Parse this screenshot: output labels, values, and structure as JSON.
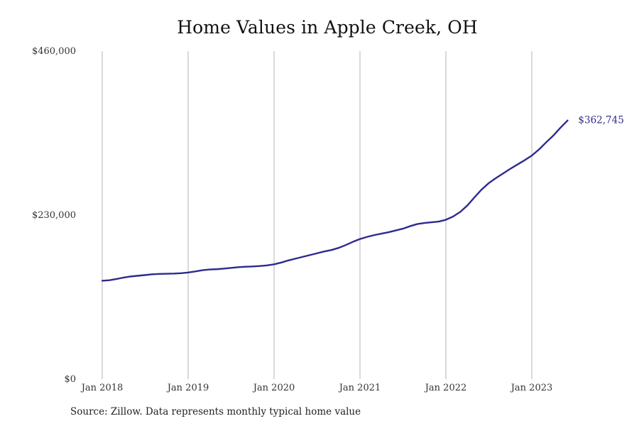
{
  "chart_data": {
    "type": "line",
    "title": "Home Values in Apple Creek, OH",
    "xlabel": "",
    "ylabel": "",
    "x_tick_labels": [
      "Jan 2018",
      "Jan 2019",
      "Jan 2020",
      "Jan 2021",
      "Jan 2022",
      "Jan 2023"
    ],
    "y_tick_labels": [
      "$0",
      "$230,000",
      "$460,000"
    ],
    "y_ticks": [
      0,
      230000,
      460000
    ],
    "ylim": [
      0,
      460000
    ],
    "x_range": [
      "2018-01",
      "2023-04"
    ],
    "grid": "vertical lines at x ticks",
    "legend": "none",
    "end_label": "$362,745",
    "series": [
      {
        "color": "#2e2a8f",
        "points": [
          [
            "2018-01",
            138000
          ],
          [
            "2018-02",
            138700
          ],
          [
            "2018-03",
            140500
          ],
          [
            "2018-04",
            142500
          ],
          [
            "2018-05",
            144000
          ],
          [
            "2018-06",
            145000
          ],
          [
            "2018-07",
            146000
          ],
          [
            "2018-08",
            147000
          ],
          [
            "2018-09",
            147500
          ],
          [
            "2018-10",
            147800
          ],
          [
            "2018-11",
            148000
          ],
          [
            "2018-12",
            148500
          ],
          [
            "2019-01",
            149500
          ],
          [
            "2019-02",
            151000
          ],
          [
            "2019-03",
            152800
          ],
          [
            "2019-04",
            153800
          ],
          [
            "2019-05",
            154200
          ],
          [
            "2019-06",
            155000
          ],
          [
            "2019-07",
            156000
          ],
          [
            "2019-08",
            157000
          ],
          [
            "2019-09",
            157600
          ],
          [
            "2019-10",
            158000
          ],
          [
            "2019-11",
            158600
          ],
          [
            "2019-12",
            159500
          ],
          [
            "2020-01",
            161000
          ],
          [
            "2020-02",
            163500
          ],
          [
            "2020-03",
            166500
          ],
          [
            "2020-04",
            169000
          ],
          [
            "2020-05",
            171500
          ],
          [
            "2020-06",
            174000
          ],
          [
            "2020-07",
            176500
          ],
          [
            "2020-08",
            179000
          ],
          [
            "2020-09",
            181000
          ],
          [
            "2020-10",
            184000
          ],
          [
            "2020-11",
            188000
          ],
          [
            "2020-12",
            192500
          ],
          [
            "2021-01",
            196500
          ],
          [
            "2021-02",
            199500
          ],
          [
            "2021-03",
            202000
          ],
          [
            "2021-04",
            204000
          ],
          [
            "2021-05",
            206000
          ],
          [
            "2021-06",
            208500
          ],
          [
            "2021-07",
            211000
          ],
          [
            "2021-08",
            214500
          ],
          [
            "2021-09",
            217500
          ],
          [
            "2021-10",
            219000
          ],
          [
            "2021-11",
            220000
          ],
          [
            "2021-12",
            221000
          ],
          [
            "2022-01",
            223500
          ],
          [
            "2022-02",
            228000
          ],
          [
            "2022-03",
            234500
          ],
          [
            "2022-04",
            243500
          ],
          [
            "2022-05",
            255000
          ],
          [
            "2022-06",
            266000
          ],
          [
            "2022-07",
            275000
          ],
          [
            "2022-08",
            282000
          ],
          [
            "2022-09",
            288500
          ],
          [
            "2022-10",
            295000
          ],
          [
            "2022-11",
            301000
          ],
          [
            "2022-12",
            307000
          ],
          [
            "2023-01",
            313500
          ],
          [
            "2023-02",
            322000
          ],
          [
            "2023-03",
            332000
          ],
          [
            "2023-04",
            341500
          ],
          [
            "2023-05",
            352500
          ],
          [
            "2023-06",
            362745
          ]
        ]
      }
    ]
  },
  "source_note": "Source: Zillow. Data represents monthly typical home value"
}
